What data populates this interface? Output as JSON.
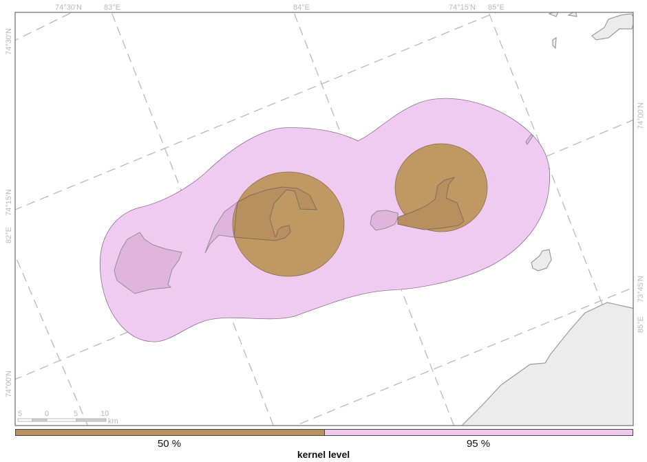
{
  "map": {
    "graticule_labels": {
      "top": [
        "74°30'N",
        "83°E",
        "84°E",
        "74°15'N",
        "85°E"
      ],
      "left": [
        "74°30'N",
        "74°15'N",
        "82°E",
        "74°00'N"
      ],
      "right": [
        "74°00'N",
        "73°45'N",
        "85°E"
      ]
    },
    "scale_bar": {
      "ticks": [
        "5",
        "0",
        "5",
        "10"
      ],
      "unit": "km"
    },
    "layers": {
      "kernel_95": {
        "color": "#efcbf1"
      },
      "kernel_50": {
        "color": "#bf9863"
      },
      "land": {
        "color": "#ececec"
      }
    }
  },
  "legend": {
    "title": "kernel level",
    "items": [
      {
        "label": "50 %",
        "color": "#b8925f"
      },
      {
        "label": "95 %",
        "color": "#f0c9f0"
      }
    ]
  }
}
